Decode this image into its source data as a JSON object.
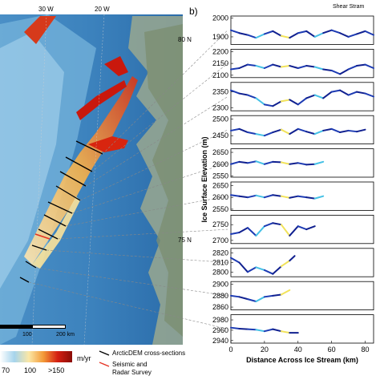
{
  "map": {
    "lon_labels": [
      "30 W",
      "20 W"
    ],
    "lat_labels": [
      "80 N",
      "75 N"
    ],
    "scalebar": [
      "100",
      "200 km"
    ],
    "colorbar": {
      "ticks": [
        "70",
        "100",
        ">150"
      ],
      "unit": "m/yr",
      "colors": [
        "#ffffff",
        "#a6d4ec",
        "#fbe7a5",
        "#f39a38",
        "#d41f12",
        "#8a0c07"
      ]
    },
    "legend": [
      {
        "label": "ArcticDEM cross-sections",
        "color": "#000000"
      },
      {
        "label": "Seismic and",
        "label2": "Radar Survey",
        "color": "#e53223"
      }
    ]
  },
  "panel_label": "b)",
  "header_text": "Shear Stram",
  "chart_data": {
    "type": "line",
    "xlabel": "Distance Across Ice Stream (km)",
    "ylabel": "Ice Surface Elevation (m)",
    "xlim": [
      0,
      85
    ],
    "xticks": [
      "0",
      "20",
      "40",
      "60",
      "80"
    ],
    "panels": [
      {
        "yticks": [
          "2000",
          "1900"
        ],
        "ylim": [
          1860,
          2010
        ],
        "x": [
          0,
          5,
          10,
          15,
          20,
          25,
          30,
          35,
          40,
          45,
          50,
          55,
          60,
          65,
          70,
          75,
          80,
          85
        ],
        "y": [
          1935,
          1920,
          1910,
          1895,
          1915,
          1930,
          1905,
          1895,
          1920,
          1930,
          1900,
          1920,
          1935,
          1920,
          1900,
          1915,
          1930,
          1910
        ]
      },
      {
        "yticks": [
          "2200",
          "2150",
          "2100"
        ],
        "ylim": [
          2090,
          2210
        ],
        "x": [
          0,
          5,
          10,
          15,
          20,
          25,
          30,
          35,
          40,
          45,
          50,
          55,
          60,
          65,
          70,
          75,
          80,
          85
        ],
        "y": [
          2125,
          2130,
          2145,
          2140,
          2130,
          2145,
          2135,
          2140,
          2130,
          2140,
          2135,
          2125,
          2120,
          2105,
          2125,
          2140,
          2145,
          2130
        ]
      },
      {
        "yticks": [
          "2350",
          "2300"
        ],
        "ylim": [
          2290,
          2380
        ],
        "x": [
          0,
          5,
          10,
          15,
          20,
          25,
          30,
          35,
          40,
          45,
          50,
          55,
          60,
          65,
          70,
          75,
          80,
          85
        ],
        "y": [
          2355,
          2345,
          2340,
          2330,
          2310,
          2305,
          2320,
          2325,
          2310,
          2330,
          2340,
          2330,
          2350,
          2355,
          2340,
          2350,
          2345,
          2335
        ]
      },
      {
        "yticks": [
          "2500",
          "2450"
        ],
        "ylim": [
          2425,
          2510
        ],
        "x": [
          0,
          5,
          10,
          15,
          20,
          25,
          30,
          35,
          40,
          45,
          50,
          55,
          60,
          65,
          70,
          75,
          80
        ],
        "y": [
          2465,
          2470,
          2460,
          2455,
          2450,
          2460,
          2468,
          2455,
          2470,
          2462,
          2455,
          2465,
          2470,
          2460,
          2465,
          2462,
          2468
        ]
      },
      {
        "yticks": [
          "2650",
          "2600",
          "2550"
        ],
        "ylim": [
          2545,
          2665
        ],
        "x": [
          0,
          5,
          10,
          15,
          20,
          25,
          30,
          35,
          40,
          45,
          50,
          55
        ],
        "y": [
          2600,
          2610,
          2605,
          2612,
          2600,
          2610,
          2608,
          2600,
          2605,
          2598,
          2600,
          2610
        ]
      },
      {
        "yticks": [
          "2650",
          "2600",
          "2550"
        ],
        "ylim": [
          2545,
          2665
        ],
        "x": [
          0,
          5,
          10,
          15,
          20,
          25,
          30,
          35,
          40,
          45,
          50,
          55
        ],
        "y": [
          2610,
          2605,
          2600,
          2608,
          2600,
          2610,
          2605,
          2598,
          2605,
          2600,
          2595,
          2605
        ]
      },
      {
        "yticks": [
          "2750",
          "2700"
        ],
        "ylim": [
          2690,
          2780
        ],
        "x": [
          0,
          5,
          10,
          15,
          20,
          25,
          30,
          35,
          40,
          45,
          50
        ],
        "y": [
          2720,
          2725,
          2740,
          2715,
          2745,
          2755,
          2750,
          2715,
          2745,
          2735,
          2745
        ]
      },
      {
        "yticks": [
          "2820",
          "2810",
          "2800"
        ],
        "ylim": [
          2795,
          2825
        ],
        "x": [
          0,
          5,
          10,
          15,
          20,
          25,
          30,
          35,
          38
        ],
        "y": [
          2815,
          2810,
          2800,
          2805,
          2802,
          2798,
          2806,
          2812,
          2817
        ]
      },
      {
        "yticks": [
          "2900",
          "2880",
          "2860"
        ],
        "ylim": [
          2855,
          2905
        ],
        "x": [
          0,
          5,
          10,
          15,
          20,
          25,
          30,
          35
        ],
        "y": [
          2880,
          2878,
          2874,
          2870,
          2878,
          2880,
          2882,
          2890
        ]
      },
      {
        "yticks": [
          "2980",
          "2960",
          "2940"
        ],
        "ylim": [
          2935,
          2990
        ],
        "x": [
          0,
          5,
          10,
          15,
          20,
          25,
          30,
          35,
          40
        ],
        "y": [
          2965,
          2963,
          2962,
          2961,
          2958,
          2962,
          2958,
          2955,
          2955
        ]
      }
    ]
  }
}
